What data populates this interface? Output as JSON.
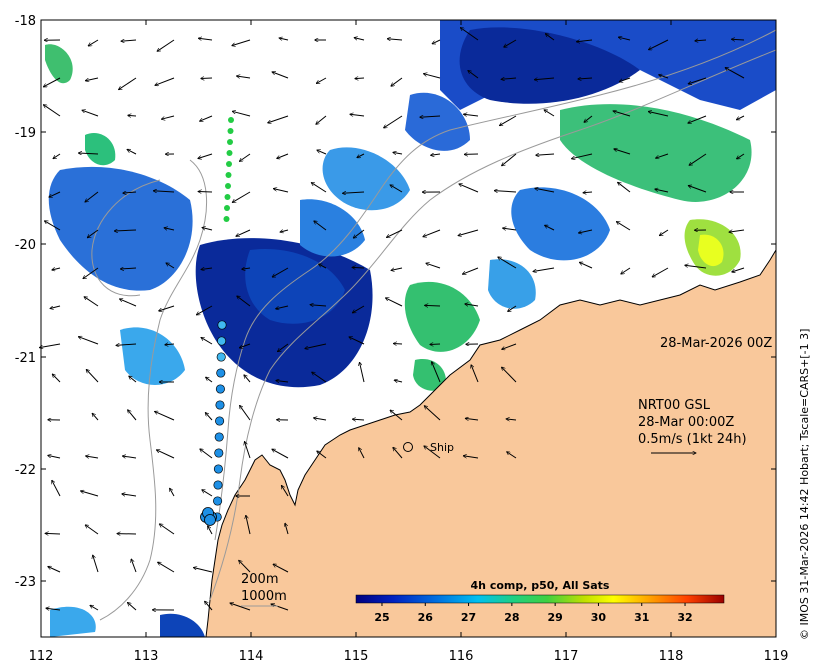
{
  "map": {
    "lon_ticks": [
      "112",
      "113",
      "114",
      "115",
      "116",
      "117",
      "118",
      "119"
    ],
    "lat_ticks": [
      "-18",
      "-19",
      "-20",
      "-21",
      "-22",
      "-23"
    ],
    "date_label": "28-Mar-2026 00Z",
    "ship_label": "Ship",
    "legend_lines": [
      "NRT00 GSL",
      "28-Mar 00:00Z",
      "0.5m/s (1kt 24h)"
    ],
    "depth_labels": [
      "200m",
      "1000m"
    ],
    "colorbar": {
      "title": "4h comp, p50, All Sats",
      "ticks": [
        "25",
        "26",
        "27",
        "28",
        "29",
        "30",
        "31",
        "32"
      ],
      "min": 24.4,
      "max": 32.9
    },
    "credit": "© IMOS 31-Mar-2026 14:42 Hobart; Tscale=CARS+[-1 3]",
    "colors": {
      "land": "#f9c89b",
      "coast": "#000000",
      "bathymetry": "#9a9a9a"
    }
  }
}
